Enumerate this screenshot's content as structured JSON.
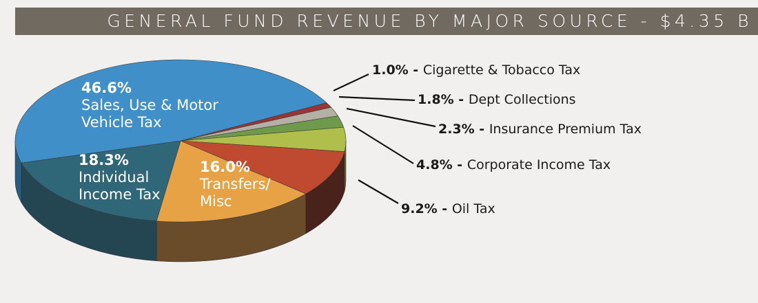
{
  "chart_data": {
    "type": "pie",
    "title": "GENERAL FUND REVENUE BY MAJOR SOURCE - $4.35 B",
    "slices": [
      {
        "label": "Cigarette & Tobacco Tax",
        "pct_label": "1.0%",
        "value": 1.0,
        "color": "#9b3434",
        "side": "#5e1e1e"
      },
      {
        "label": "Dept Collections",
        "pct_label": "1.8%",
        "value": 1.8,
        "color": "#b4b0a4",
        "side": "#6e6a60"
      },
      {
        "label": "Insurance Premium Tax",
        "pct_label": "2.3%",
        "value": 2.3,
        "color": "#6f9a4c",
        "side": "#40582c"
      },
      {
        "label": "Corporate Income Tax",
        "pct_label": "4.8%",
        "value": 4.8,
        "color": "#b0bf4c",
        "side": "#66702a"
      },
      {
        "label": "Oil Tax",
        "pct_label": "9.2%",
        "value": 9.2,
        "color": "#bf4a30",
        "side": "#4a221c"
      },
      {
        "label": "Transfers/ Misc",
        "label_lines": [
          "Transfers/",
          "Misc"
        ],
        "pct_label": "16.0%",
        "value": 16.0,
        "color": "#e7a246",
        "side": "#6a4c2a"
      },
      {
        "label": "Individual Income Tax",
        "label_lines": [
          "Individual",
          "Income Tax"
        ],
        "pct_label": "18.3%",
        "value": 18.3,
        "color": "#2f6778",
        "side": "#244652"
      },
      {
        "label": "Sales, Use & Motor Vehicle Tax",
        "label_lines": [
          "Sales, Use & Motor",
          "Vehicle Tax"
        ],
        "pct_label": "46.6%",
        "value": 46.6,
        "color": "#418fc8",
        "side": "#2a5c82"
      }
    ]
  }
}
